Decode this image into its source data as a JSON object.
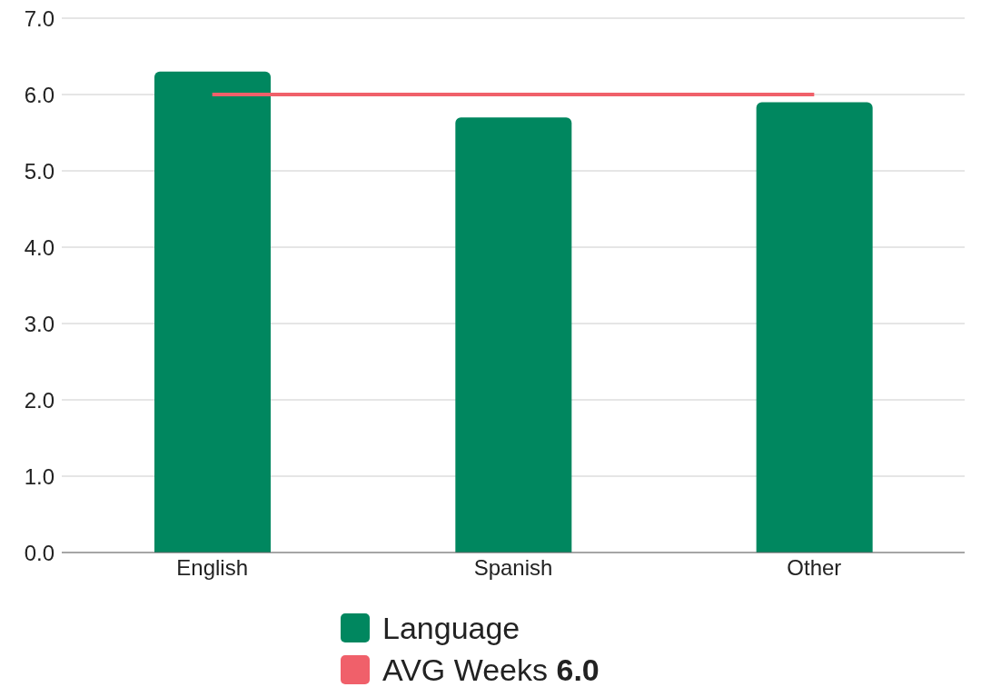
{
  "chart_data": {
    "type": "bar",
    "categories": [
      "English",
      "Spanish",
      "Other"
    ],
    "series": [
      {
        "name": "Language",
        "color": "#00875f",
        "values": [
          6.3,
          5.7,
          5.9
        ]
      },
      {
        "name": "AVG Weeks 6.0",
        "type": "line",
        "color": "#f0606a",
        "values": [
          6.0,
          6.0,
          6.0
        ]
      }
    ],
    "ylim": [
      0,
      7
    ],
    "yticks": [
      {
        "value": 0,
        "label": "0.0"
      },
      {
        "value": 1,
        "label": "1.0"
      },
      {
        "value": 2,
        "label": "2.0"
      },
      {
        "value": 3,
        "label": "3.0"
      },
      {
        "value": 4,
        "label": "4.0"
      },
      {
        "value": 5,
        "label": "5.0"
      },
      {
        "value": 6,
        "label": "6.0"
      },
      {
        "value": 7,
        "label": "7.0"
      }
    ],
    "grid": "y",
    "legend": "bottom",
    "marker": "none",
    "line_style": "solid"
  }
}
